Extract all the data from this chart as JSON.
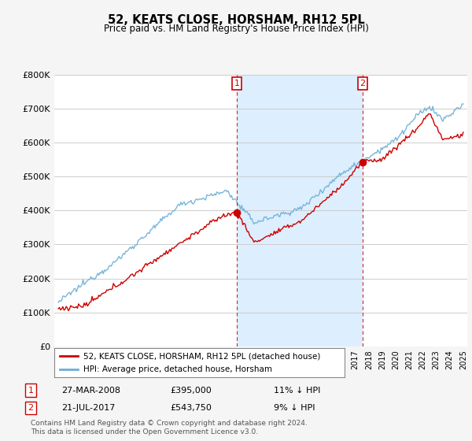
{
  "title": "52, KEATS CLOSE, HORSHAM, RH12 5PL",
  "subtitle": "Price paid vs. HM Land Registry's House Price Index (HPI)",
  "legend_line1": "52, KEATS CLOSE, HORSHAM, RH12 5PL (detached house)",
  "legend_line2": "HPI: Average price, detached house, Horsham",
  "annotation1_label": "1",
  "annotation1_date": "27-MAR-2008",
  "annotation1_price": "£395,000",
  "annotation1_hpi": "11% ↓ HPI",
  "annotation2_label": "2",
  "annotation2_date": "21-JUL-2017",
  "annotation2_price": "£543,750",
  "annotation2_hpi": "9% ↓ HPI",
  "footnote": "Contains HM Land Registry data © Crown copyright and database right 2024.\nThis data is licensed under the Open Government Licence v3.0.",
  "hpi_color": "#6baed6",
  "price_color": "#cc0000",
  "vline_color": "#cc0000",
  "shade_color": "#ddeeff",
  "background_color": "#ffffff",
  "fig_bg_color": "#f5f5f5",
  "ylim": [
    0,
    800000
  ],
  "yticks": [
    0,
    100000,
    200000,
    300000,
    400000,
    500000,
    600000,
    700000,
    800000
  ],
  "ytick_labels": [
    "£0",
    "£100K",
    "£200K",
    "£300K",
    "£400K",
    "£500K",
    "£600K",
    "£700K",
    "£800K"
  ],
  "year_start": 1995,
  "year_end": 2025,
  "sale1_year": 2008.23,
  "sale1_price": 395000,
  "sale2_year": 2017.55,
  "sale2_price": 543750,
  "figsize": [
    6.0,
    5.6
  ],
  "dpi": 100
}
